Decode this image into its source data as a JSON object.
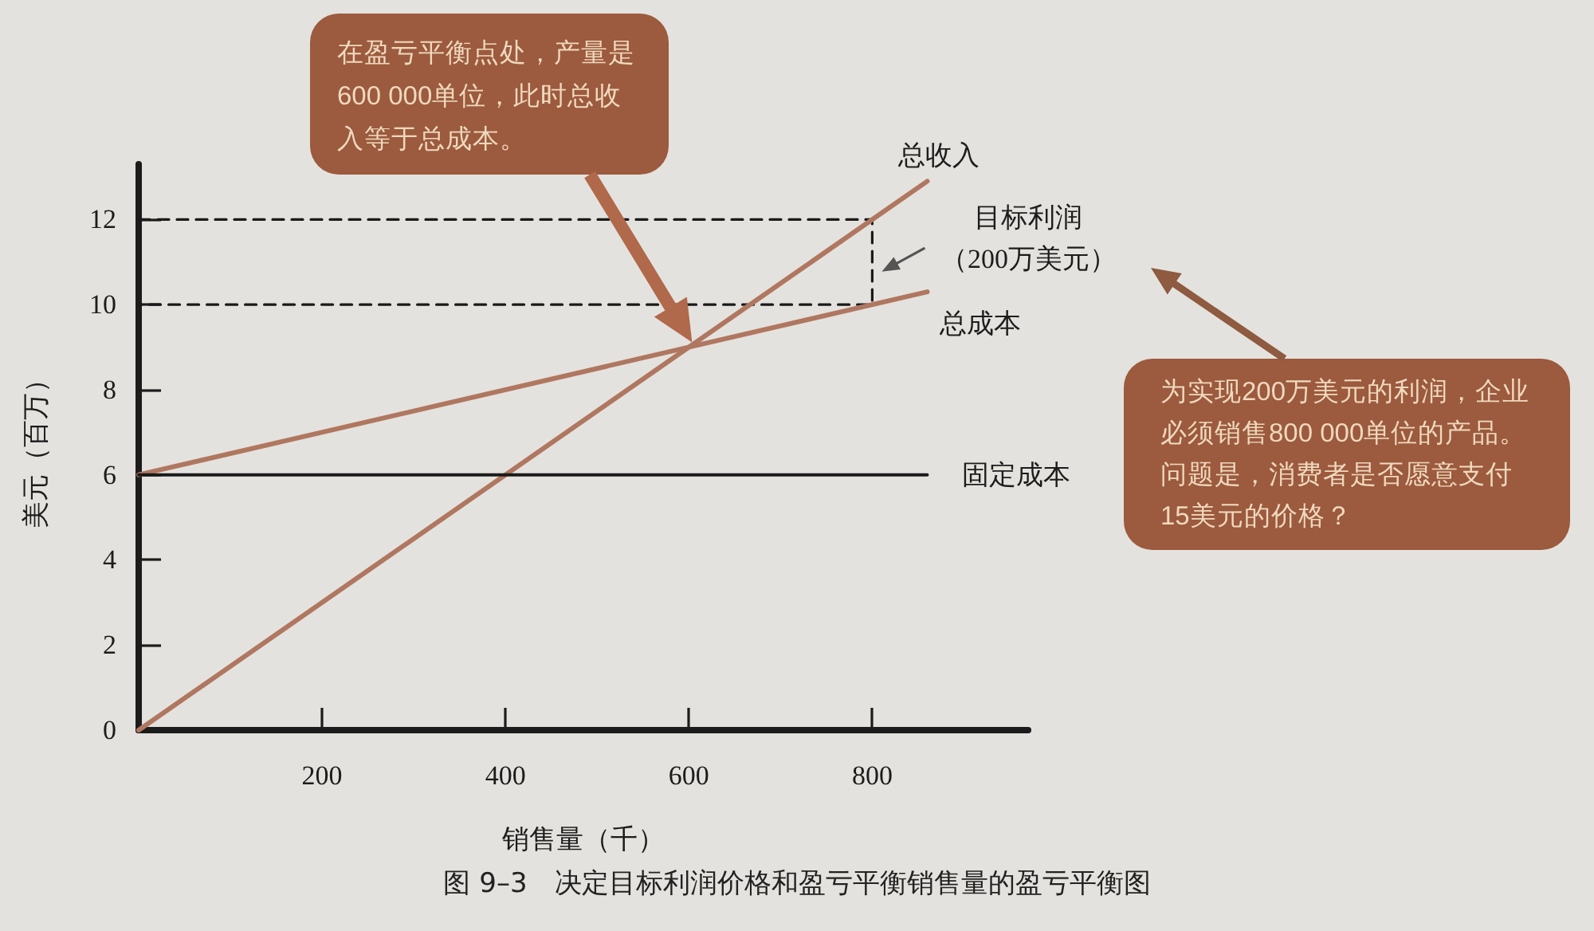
{
  "chart_data": {
    "type": "line",
    "title": "图 9–3　决定目标利润价格和盈亏平衡销售量的盈亏平衡图",
    "xlabel": "销售量（千）",
    "ylabel": "美元（百万）",
    "xlim": [
      0,
      970
    ],
    "xticks": [
      200,
      400,
      600,
      800
    ],
    "ylim": [
      0,
      13.3
    ],
    "yticks": [
      0,
      2,
      4,
      6,
      8,
      10,
      12
    ],
    "marker": "none",
    "series": [
      {
        "name": "总收入",
        "color": "#b07760",
        "x": [
          0,
          860
        ],
        "values": [
          0,
          12.9
        ]
      },
      {
        "name": "总成本",
        "color": "#b07760",
        "x": [
          0,
          860
        ],
        "values": [
          6,
          10.3
        ]
      },
      {
        "name": "固定成本",
        "color": "#1a1a1a",
        "x": [
          0,
          860
        ],
        "values": [
          6,
          6
        ]
      },
      {
        "color": "#1a1a1a",
        "line_style": "dashed",
        "x": [
          0,
          800,
          800,
          0
        ],
        "values": [
          12,
          12,
          10,
          10
        ]
      }
    ],
    "annotations": [
      {
        "text": "目标利润（200万美元）",
        "x": 800,
        "y": 11
      },
      "在盈亏平衡点处，产量是600 000单位，此时总收入等于总成本。",
      "为实现200万美元的利润，企业必须销售800 000单位的产品。问题是，消费者是否愿意支付15美元的价格？"
    ]
  }
}
